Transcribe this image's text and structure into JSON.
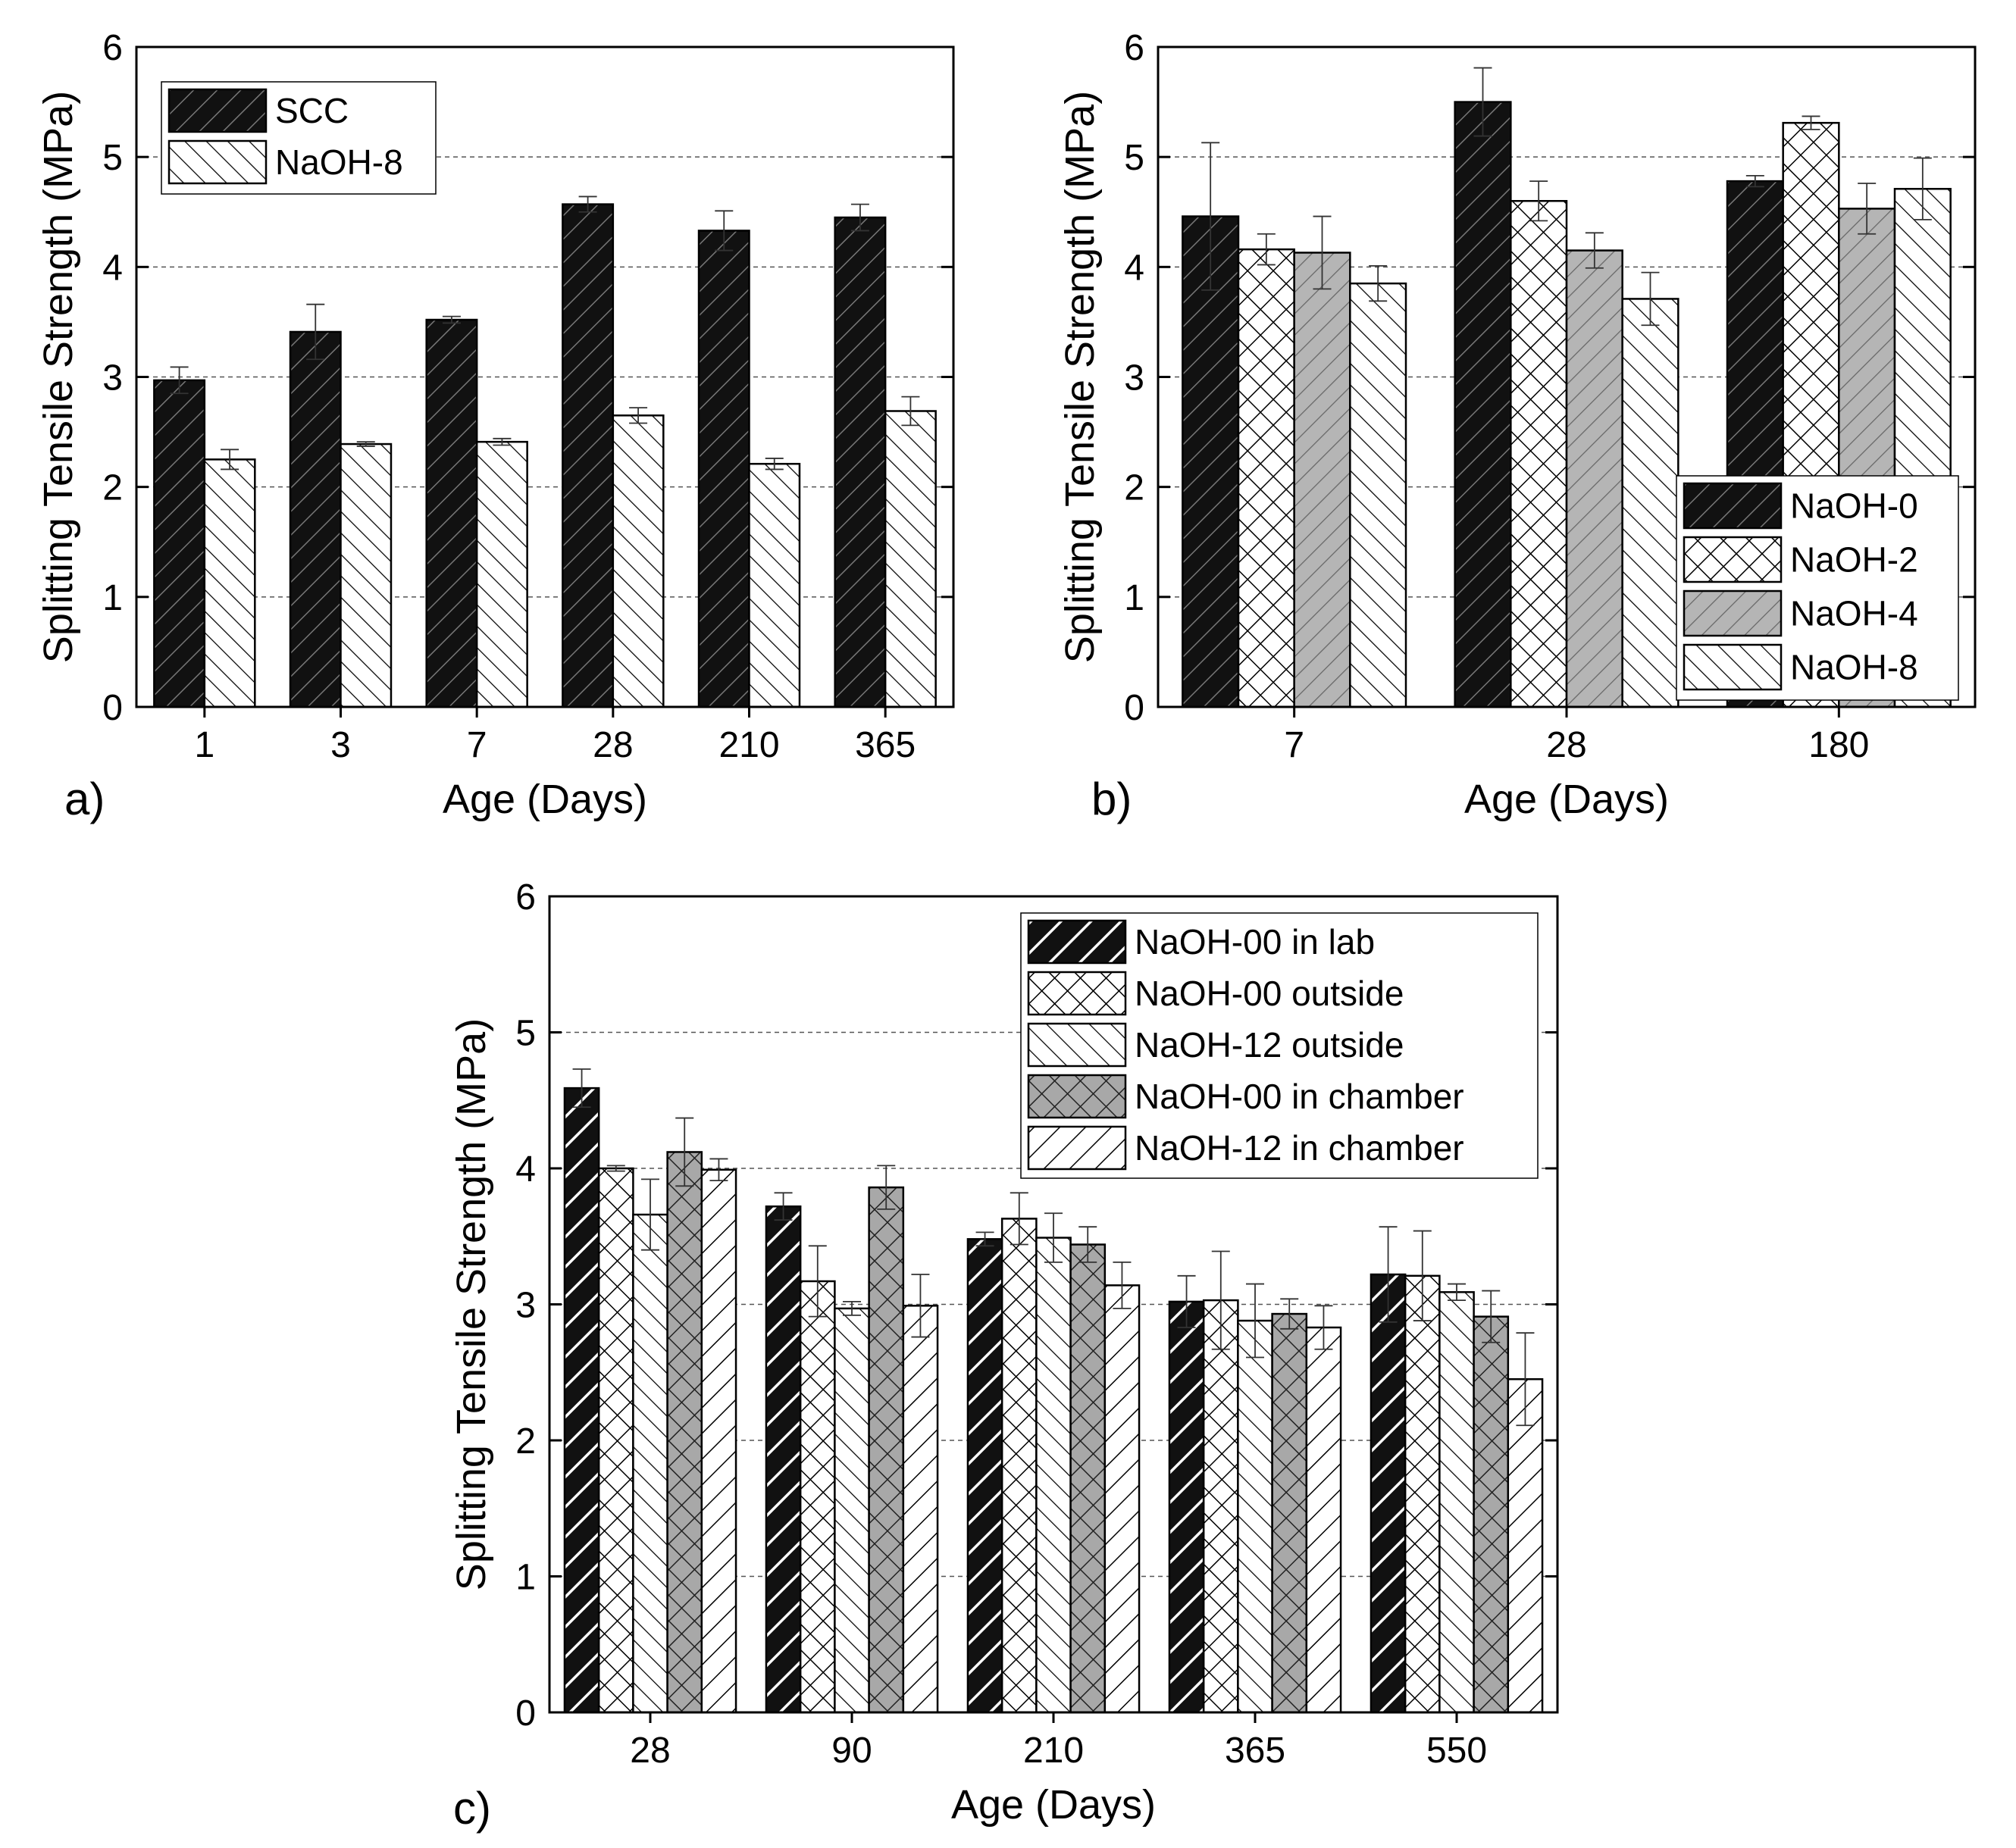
{
  "chart_data": [
    {
      "id": "a",
      "panel_label": "a)",
      "type": "bar",
      "xlabel": "Age (Days)",
      "ylabel": "Splitting Tensile Strength (MPa)",
      "ylim": [
        0,
        6
      ],
      "yticks": [
        0,
        1,
        2,
        3,
        4,
        5,
        6
      ],
      "grid": true,
      "legend_position": "top-left",
      "categories": [
        "1",
        "3",
        "7",
        "28",
        "210",
        "365"
      ],
      "series": [
        {
          "name": "SCC",
          "pattern": "solid-black-hatch",
          "values": [
            2.97,
            3.41,
            3.52,
            4.57,
            4.33,
            4.45
          ],
          "errors": [
            0.12,
            0.25,
            0.03,
            0.07,
            0.18,
            0.12
          ]
        },
        {
          "name": "NaOH-8",
          "pattern": "back-diagonal",
          "values": [
            2.25,
            2.39,
            2.41,
            2.65,
            2.21,
            2.69
          ],
          "errors": [
            0.09,
            0.02,
            0.03,
            0.07,
            0.05,
            0.13
          ]
        }
      ]
    },
    {
      "id": "b",
      "panel_label": "b)",
      "type": "bar",
      "xlabel": "Age (Days)",
      "ylabel": "Splitting Tensile Strength (MPa)",
      "ylim": [
        0,
        6
      ],
      "yticks": [
        0,
        1,
        2,
        3,
        4,
        5,
        6
      ],
      "grid": true,
      "legend_position": "bottom-right",
      "categories": [
        "7",
        "28",
        "180"
      ],
      "series": [
        {
          "name": "NaOH-0",
          "pattern": "solid-black-hatch",
          "values": [
            4.46,
            5.5,
            4.78
          ],
          "errors": [
            0.67,
            0.31,
            0.05
          ]
        },
        {
          "name": "NaOH-2",
          "pattern": "crosshatch",
          "values": [
            4.16,
            4.6,
            5.31
          ],
          "errors": [
            0.14,
            0.18,
            0.06
          ]
        },
        {
          "name": "NaOH-4",
          "pattern": "gray-hatch",
          "values": [
            4.13,
            4.15,
            4.53
          ],
          "errors": [
            0.33,
            0.16,
            0.23
          ]
        },
        {
          "name": "NaOH-8",
          "pattern": "back-diagonal",
          "values": [
            3.85,
            3.71,
            4.71
          ],
          "errors": [
            0.16,
            0.24,
            0.28
          ]
        }
      ]
    },
    {
      "id": "c",
      "panel_label": "c)",
      "type": "bar",
      "xlabel": "Age (Days)",
      "ylabel": "Splitting Tensile Strength (MPa)",
      "ylim": [
        0,
        6
      ],
      "yticks": [
        0,
        1,
        2,
        3,
        4,
        5,
        6
      ],
      "grid": true,
      "legend_position": "top-right",
      "categories": [
        "28",
        "90",
        "210",
        "365",
        "550"
      ],
      "series": [
        {
          "name": "NaOH-00 in lab",
          "pattern": "black-white-diagonal",
          "values": [
            4.59,
            3.72,
            3.48,
            3.02,
            3.22
          ],
          "errors": [
            0.14,
            0.1,
            0.05,
            0.19,
            0.35
          ]
        },
        {
          "name": "NaOH-00 outside",
          "pattern": "crosshatch",
          "values": [
            4.0,
            3.17,
            3.63,
            3.03,
            3.21
          ],
          "errors": [
            0.02,
            0.26,
            0.19,
            0.36,
            0.33
          ]
        },
        {
          "name": "NaOH-12 outside",
          "pattern": "back-diagonal",
          "values": [
            3.66,
            2.97,
            3.49,
            2.88,
            3.09
          ],
          "errors": [
            0.26,
            0.05,
            0.18,
            0.27,
            0.06
          ]
        },
        {
          "name": "NaOH-00 in chamber",
          "pattern": "gray-crosshatch",
          "values": [
            4.12,
            3.86,
            3.44,
            2.93,
            2.91
          ],
          "errors": [
            0.25,
            0.16,
            0.13,
            0.11,
            0.19
          ]
        },
        {
          "name": "NaOH-12 in chamber",
          "pattern": "forward-diagonal",
          "values": [
            3.99,
            2.99,
            3.14,
            2.83,
            2.45
          ],
          "errors": [
            0.08,
            0.23,
            0.17,
            0.16,
            0.34
          ]
        }
      ]
    }
  ]
}
